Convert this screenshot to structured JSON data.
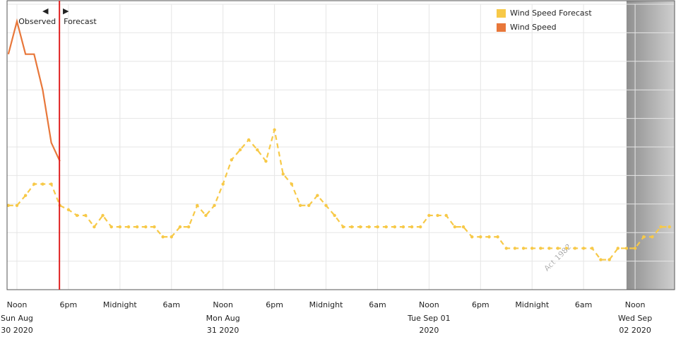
{
  "chart_data": {
    "type": "line",
    "legend": "top-right",
    "grid": true,
    "xlim": [
      -1.15,
      76.6
    ],
    "ylim": [
      0,
      10
    ],
    "yticks": [
      0,
      1,
      2,
      3,
      4,
      5,
      6,
      7,
      8,
      9,
      10
    ],
    "now": 4.95,
    "shade_from": 71.0,
    "annotations": {
      "observed": "Observed",
      "forecast": "Forecast"
    },
    "watermark": "Act 1982",
    "xticks": [
      {
        "value": 0,
        "label": "Noon",
        "date": [
          "Sun Aug",
          "30 2020"
        ]
      },
      {
        "value": 6,
        "label": "6pm"
      },
      {
        "value": 12,
        "label": "Midnight"
      },
      {
        "value": 18,
        "label": "6am"
      },
      {
        "value": 24,
        "label": "Noon",
        "date": [
          "Mon Aug",
          "31 2020"
        ]
      },
      {
        "value": 30,
        "label": "6pm"
      },
      {
        "value": 36,
        "label": "Midnight"
      },
      {
        "value": 42,
        "label": "6am"
      },
      {
        "value": 48,
        "label": "Noon",
        "date": [
          "Tue Sep 01",
          "2020"
        ]
      },
      {
        "value": 54,
        "label": "6pm"
      },
      {
        "value": 60,
        "label": "Midnight"
      },
      {
        "value": 66,
        "label": "6am"
      },
      {
        "value": 72,
        "label": "Noon",
        "date": [
          "Wed Sep",
          "02 2020"
        ]
      }
    ],
    "x": [
      -1,
      0,
      1,
      2,
      3,
      4,
      5,
      6,
      7,
      8,
      9,
      10,
      11,
      12,
      13,
      14,
      15,
      16,
      17,
      18,
      19,
      20,
      21,
      22,
      23,
      24,
      25,
      26,
      27,
      28,
      29,
      30,
      31,
      32,
      33,
      34,
      35,
      36,
      37,
      38,
      39,
      40,
      41,
      42,
      43,
      44,
      45,
      46,
      47,
      48,
      49,
      50,
      51,
      52,
      53,
      54,
      55,
      56,
      57,
      58,
      59,
      60,
      61,
      62,
      63,
      64,
      65,
      66,
      67,
      68,
      69,
      70,
      71,
      72,
      73,
      74,
      75,
      76
    ],
    "series": [
      {
        "name": "Wind Speed Forecast",
        "color": "#f7c948",
        "dashed": true,
        "values": [
          2.95,
          2.95,
          3.3,
          3.7,
          3.7,
          3.7,
          2.95,
          2.8,
          2.6,
          2.6,
          2.2,
          2.6,
          2.2,
          2.2,
          2.2,
          2.2,
          2.2,
          2.2,
          1.85,
          1.85,
          2.2,
          2.2,
          2.95,
          2.6,
          2.95,
          3.7,
          4.55,
          4.9,
          5.25,
          4.9,
          4.5,
          5.6,
          4.05,
          3.7,
          2.95,
          2.95,
          3.3,
          2.95,
          2.6,
          2.2,
          2.2,
          2.2,
          2.2,
          2.2,
          2.2,
          2.2,
          2.2,
          2.2,
          2.2,
          2.6,
          2.6,
          2.6,
          2.2,
          2.2,
          1.85,
          1.85,
          1.85,
          1.85,
          1.45,
          1.45,
          1.45,
          1.45,
          1.45,
          1.45,
          1.45,
          1.45,
          1.45,
          1.45,
          1.45,
          1.05,
          1.05,
          1.45,
          1.45,
          1.45,
          1.85,
          1.85,
          2.2,
          2.2
        ]
      },
      {
        "name": "Wind Speed",
        "color": "#e8773a",
        "dashed": false,
        "values": [
          8.25,
          9.4,
          8.25,
          8.25,
          7.0,
          5.15,
          4.5,
          null,
          null,
          null,
          null,
          null,
          null,
          null,
          null,
          null,
          null,
          null,
          null,
          null,
          null,
          null,
          null,
          null,
          null,
          null,
          null,
          null,
          null,
          null,
          null,
          null,
          null,
          null,
          null,
          null,
          null,
          null,
          null,
          null,
          null,
          null,
          null,
          null,
          null,
          null,
          null,
          null,
          null,
          null,
          null,
          null,
          null,
          null,
          null,
          null,
          null,
          null,
          null,
          null,
          null,
          null,
          null,
          null,
          null,
          null,
          null,
          null,
          null,
          null,
          null,
          null,
          null,
          null,
          null,
          null,
          null,
          null
        ]
      }
    ]
  }
}
